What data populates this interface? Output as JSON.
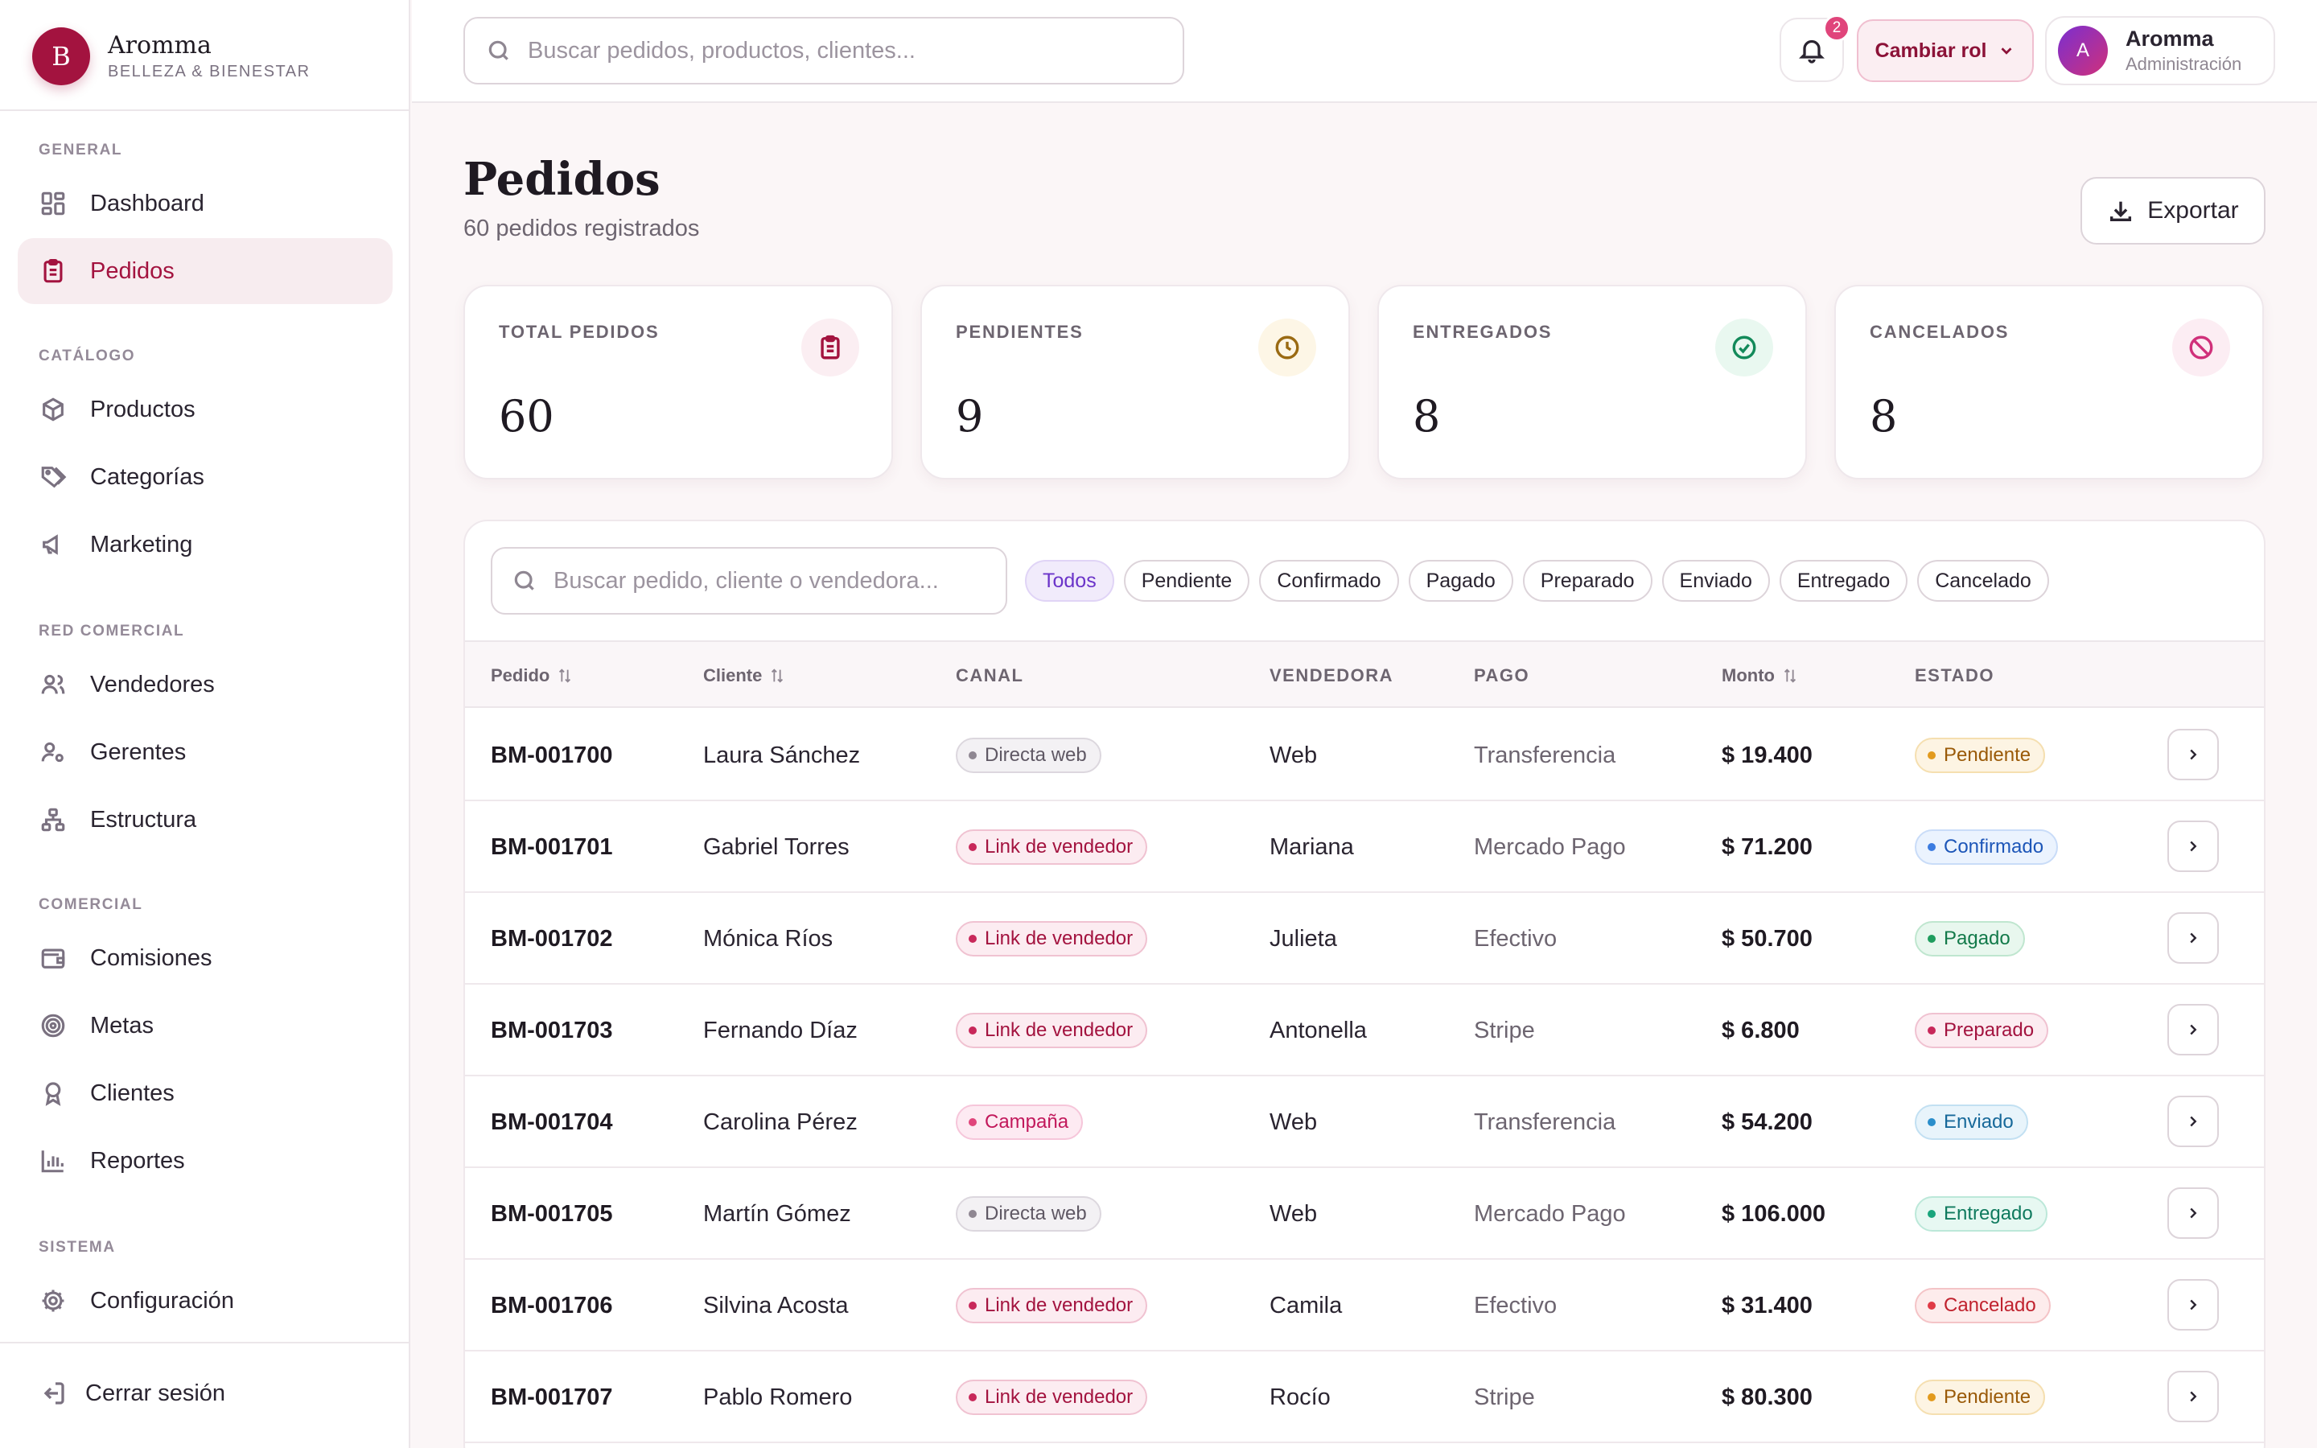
{
  "brand": {
    "logo_letter": "B",
    "name": "Aromma",
    "subtitle": "BELLEZA & BIENESTAR"
  },
  "sidebar": {
    "sections": [
      {
        "title": "GENERAL",
        "items": [
          {
            "label": "Dashboard",
            "icon": "dashboard-icon",
            "active": false
          },
          {
            "label": "Pedidos",
            "icon": "clipboard-icon",
            "active": true
          }
        ]
      },
      {
        "title": "CATÁLOGO",
        "items": [
          {
            "label": "Productos",
            "icon": "box-icon",
            "active": false
          },
          {
            "label": "Categorías",
            "icon": "tag-icon",
            "active": false
          },
          {
            "label": "Marketing",
            "icon": "megaphone-icon",
            "active": false
          }
        ]
      },
      {
        "title": "RED COMERCIAL",
        "items": [
          {
            "label": "Vendedores",
            "icon": "users-icon",
            "active": false
          },
          {
            "label": "Gerentes",
            "icon": "user-gear-icon",
            "active": false
          },
          {
            "label": "Estructura",
            "icon": "hierarchy-icon",
            "active": false
          }
        ]
      },
      {
        "title": "COMERCIAL",
        "items": [
          {
            "label": "Comisiones",
            "icon": "wallet-icon",
            "active": false
          },
          {
            "label": "Metas",
            "icon": "target-icon",
            "active": false
          },
          {
            "label": "Clientes",
            "icon": "award-icon",
            "active": false
          },
          {
            "label": "Reportes",
            "icon": "bar-chart-icon",
            "active": false
          }
        ]
      },
      {
        "title": "SISTEMA",
        "items": [
          {
            "label": "Configuración",
            "icon": "gear-icon",
            "active": false
          }
        ]
      }
    ],
    "logout_label": "Cerrar sesión"
  },
  "topbar": {
    "search_placeholder": "Buscar pedidos, productos, clientes...",
    "notifications_count": "2",
    "role_button_label": "Cambiar rol",
    "user": {
      "initial": "A",
      "name": "Aromma",
      "role": "Administración"
    }
  },
  "page": {
    "title": "Pedidos",
    "subtitle": "60 pedidos registrados",
    "export_label": "Exportar"
  },
  "stats": [
    {
      "label": "TOTAL PEDIDOS",
      "value": "60",
      "icon": "clipboard-icon",
      "color": "#a3133f",
      "bg": "#fbeef2"
    },
    {
      "label": "PENDIENTES",
      "value": "9",
      "icon": "clock-icon",
      "color": "#9a6a12",
      "bg": "#fdf6e6"
    },
    {
      "label": "ENTREGADOS",
      "value": "8",
      "icon": "check-circle-icon",
      "color": "#138a5a",
      "bg": "#e9f8f0"
    },
    {
      "label": "CANCELADOS",
      "value": "8",
      "icon": "ban-icon",
      "color": "#d0307a",
      "bg": "#fcedf3"
    }
  ],
  "table": {
    "search_placeholder": "Buscar pedido, cliente o vendedora...",
    "filters": [
      "Todos",
      "Pendiente",
      "Confirmado",
      "Pagado",
      "Preparado",
      "Enviado",
      "Entregado",
      "Cancelado"
    ],
    "active_filter": "Todos",
    "columns": [
      "Pedido",
      "Cliente",
      "CANAL",
      "VENDEDORA",
      "PAGO",
      "Monto",
      "ESTADO"
    ],
    "rows": [
      {
        "id": "BM-001700",
        "cliente": "Laura Sánchez",
        "canal": "Directa web",
        "vendedora": "Web",
        "pago": "Transferencia",
        "monto": "$ 19.400",
        "estado": "Pendiente"
      },
      {
        "id": "BM-001701",
        "cliente": "Gabriel Torres",
        "canal": "Link de vendedor",
        "vendedora": "Mariana",
        "pago": "Mercado Pago",
        "monto": "$ 71.200",
        "estado": "Confirmado"
      },
      {
        "id": "BM-001702",
        "cliente": "Mónica Ríos",
        "canal": "Link de vendedor",
        "vendedora": "Julieta",
        "pago": "Efectivo",
        "monto": "$ 50.700",
        "estado": "Pagado"
      },
      {
        "id": "BM-001703",
        "cliente": "Fernando Díaz",
        "canal": "Link de vendedor",
        "vendedora": "Antonella",
        "pago": "Stripe",
        "monto": "$ 6.800",
        "estado": "Preparado"
      },
      {
        "id": "BM-001704",
        "cliente": "Carolina Pérez",
        "canal": "Campaña",
        "vendedora": "Web",
        "pago": "Transferencia",
        "monto": "$ 54.200",
        "estado": "Enviado"
      },
      {
        "id": "BM-001705",
        "cliente": "Martín Gómez",
        "canal": "Directa web",
        "vendedora": "Web",
        "pago": "Mercado Pago",
        "monto": "$ 106.000",
        "estado": "Entregado"
      },
      {
        "id": "BM-001706",
        "cliente": "Silvina Acosta",
        "canal": "Link de vendedor",
        "vendedora": "Camila",
        "pago": "Efectivo",
        "monto": "$ 31.400",
        "estado": "Cancelado"
      },
      {
        "id": "BM-001707",
        "cliente": "Pablo Romero",
        "canal": "Link de vendedor",
        "vendedora": "Rocío",
        "pago": "Stripe",
        "monto": "$ 80.300",
        "estado": "Pendiente"
      }
    ]
  },
  "colors": {
    "accent": "#a3133f",
    "canal": {
      "Directa web": {
        "fg": "#5f5864",
        "bg": "#f3f1f4",
        "border": "#dcd7de",
        "dot": "#8f8792"
      },
      "Link de vendedor": {
        "fg": "#a3133f",
        "bg": "#fcecf1",
        "border": "#f0c2d1",
        "dot": "#c8285a"
      },
      "Campaña": {
        "fg": "#c2185b",
        "bg": "#fdeaf2",
        "border": "#f6c6da",
        "dot": "#e0457b"
      }
    },
    "estado": {
      "Pendiente": {
        "fg": "#9a5a08",
        "bg": "#fdf4e3",
        "border": "#f5dfb0",
        "dot": "#e29a1d"
      },
      "Confirmado": {
        "fg": "#1d56b8",
        "bg": "#ebf3fe",
        "border": "#c9dcf8",
        "dot": "#3b7be0"
      },
      "Pagado": {
        "fg": "#137a4a",
        "bg": "#e8f7ee",
        "border": "#bfe6cf",
        "dot": "#1f9d5e"
      },
      "Preparado": {
        "fg": "#a3133f",
        "bg": "#fcecf1",
        "border": "#f0c2d1",
        "dot": "#c8285a"
      },
      "Enviado": {
        "fg": "#17699a",
        "bg": "#e8f4fb",
        "border": "#c2e0f2",
        "dot": "#2a8ecb"
      },
      "Entregado": {
        "fg": "#0f7a5e",
        "bg": "#e7f8f2",
        "border": "#bce8d9",
        "dot": "#19a57c"
      },
      "Cancelado": {
        "fg": "#c0222e",
        "bg": "#fdecec",
        "border": "#f4c4c7",
        "dot": "#e03a46"
      }
    }
  }
}
